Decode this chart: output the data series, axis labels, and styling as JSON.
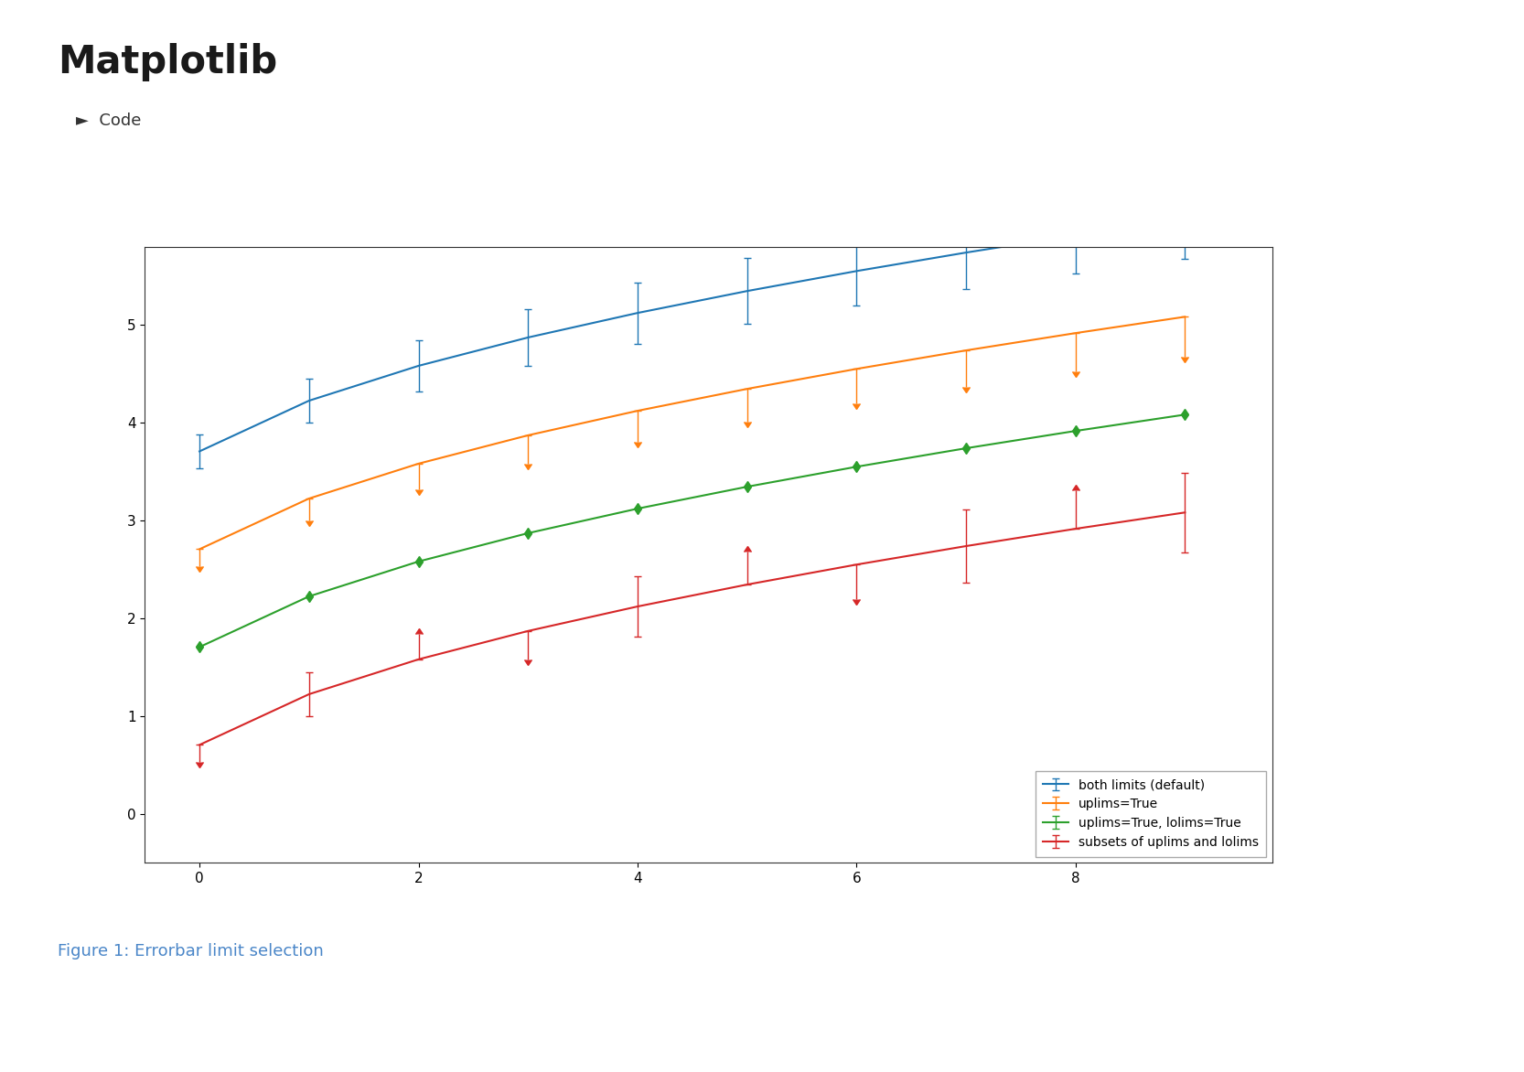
{
  "title": "Matplotlib",
  "caption": "Figure 1: Errorbar limit selection",
  "code_label": "►  Code",
  "legend_entries": [
    "both limits (default)",
    "uplims=True",
    "uplims=True, lolims=True",
    "subsets of uplims and lolims"
  ],
  "colors": [
    "#1f77b4",
    "#ff7f0e",
    "#2ca02c",
    "#d62728"
  ],
  "fig_background": "#ffffff",
  "title_color": "#1a1a1a",
  "caption_color": "#4a86c8",
  "separator_color": "#c8c8c8",
  "code_color": "#333333",
  "x_start": 0,
  "x_end": 9,
  "n_points": 10,
  "offsets": [
    3.0,
    2.0,
    1.0,
    0.0
  ],
  "yerr_scale": 0.1,
  "ylim": [
    -0.5,
    5.8
  ],
  "xlim": [
    -0.5,
    9.8
  ],
  "yticks": [
    0,
    1,
    2,
    3,
    4,
    5
  ],
  "xticks": [
    0,
    2,
    4,
    6,
    8
  ],
  "capsize": 3,
  "elinewidth": 1.0,
  "linewidth": 1.5,
  "legend_fontsize": 10,
  "tick_labelsize": 11
}
